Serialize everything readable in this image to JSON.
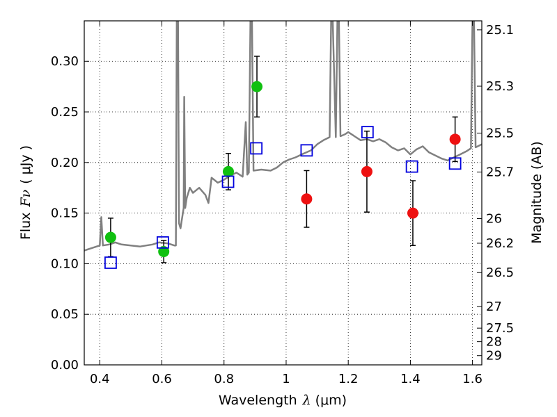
{
  "chart_data": {
    "type": "scatter",
    "xlabel": "Wavelength",
    "xlabel_symbol": "λ",
    "xlabel_unit": "(μm)",
    "ylabel": "Flux",
    "ylabel_symbol": "Fν",
    "ylabel_unit": "( μJy )",
    "y2label": "Magnitude (AB)",
    "xlim": [
      0.35,
      1.63
    ],
    "ylim": [
      0.0,
      0.34
    ],
    "x_ticks": [
      0.4,
      0.6,
      0.8,
      1.0,
      1.2,
      1.4,
      1.6
    ],
    "x_tick_labels": [
      "0.4",
      "0.6",
      "0.8",
      "1",
      "1.2",
      "1.4",
      "1.6"
    ],
    "y_ticks": [
      0.0,
      0.05,
      0.1,
      0.15,
      0.2,
      0.25,
      0.3
    ],
    "y_tick_labels": [
      "0.00",
      "0.05",
      "0.10",
      "0.15",
      "0.20",
      "0.25",
      "0.30"
    ],
    "mag_ticks": [
      "25.1",
      "25.3",
      "25.5",
      "25.7",
      "26",
      "26.2",
      "26.5",
      "27",
      "27.5",
      "28",
      "29"
    ],
    "grid": true,
    "colors": {
      "spectrum": "#808080",
      "green_points": "#10c010",
      "red_points": "#ee1111",
      "model_squares": "#0000dd",
      "errorbar": "#000000"
    },
    "series": [
      {
        "name": "observed-green",
        "marker": "circle",
        "points": [
          {
            "x": 0.435,
            "y": 0.126,
            "err": 0.019
          },
          {
            "x": 0.606,
            "y": 0.112,
            "err": 0.011
          },
          {
            "x": 0.814,
            "y": 0.191,
            "err": 0.018
          },
          {
            "x": 0.906,
            "y": 0.275,
            "err": 0.03
          }
        ]
      },
      {
        "name": "observed-red",
        "marker": "circle",
        "points": [
          {
            "x": 1.066,
            "y": 0.164,
            "err": 0.028
          },
          {
            "x": 1.26,
            "y": 0.191,
            "err": 0.04
          },
          {
            "x": 1.408,
            "y": 0.15,
            "err": 0.032
          },
          {
            "x": 1.544,
            "y": 0.223,
            "err": 0.022
          }
        ]
      },
      {
        "name": "model-bands",
        "marker": "square",
        "points": [
          {
            "x": 0.435,
            "y": 0.101
          },
          {
            "x": 0.603,
            "y": 0.121
          },
          {
            "x": 0.813,
            "y": 0.181
          },
          {
            "x": 0.904,
            "y": 0.214
          },
          {
            "x": 1.066,
            "y": 0.212
          },
          {
            "x": 1.262,
            "y": 0.23
          },
          {
            "x": 1.405,
            "y": 0.196
          },
          {
            "x": 1.544,
            "y": 0.199
          }
        ]
      }
    ],
    "spectrum": [
      [
        0.35,
        0.113
      ],
      [
        0.37,
        0.115
      ],
      [
        0.39,
        0.117
      ],
      [
        0.4,
        0.118
      ],
      [
        0.405,
        0.146
      ],
      [
        0.41,
        0.118
      ],
      [
        0.43,
        0.119
      ],
      [
        0.45,
        0.121
      ],
      [
        0.47,
        0.119
      ],
      [
        0.5,
        0.118
      ],
      [
        0.53,
        0.117
      ],
      [
        0.55,
        0.118
      ],
      [
        0.57,
        0.119
      ],
      [
        0.59,
        0.121
      ],
      [
        0.62,
        0.12
      ],
      [
        0.64,
        0.118
      ],
      [
        0.645,
        0.118
      ],
      [
        0.648,
        0.34
      ],
      [
        0.652,
        0.34
      ],
      [
        0.655,
        0.14
      ],
      [
        0.66,
        0.135
      ],
      [
        0.665,
        0.145
      ],
      [
        0.67,
        0.155
      ],
      [
        0.672,
        0.265
      ],
      [
        0.675,
        0.155
      ],
      [
        0.68,
        0.165
      ],
      [
        0.69,
        0.175
      ],
      [
        0.7,
        0.17
      ],
      [
        0.72,
        0.175
      ],
      [
        0.74,
        0.168
      ],
      [
        0.75,
        0.16
      ],
      [
        0.76,
        0.185
      ],
      [
        0.78,
        0.18
      ],
      [
        0.8,
        0.183
      ],
      [
        0.82,
        0.187
      ],
      [
        0.84,
        0.19
      ],
      [
        0.86,
        0.186
      ],
      [
        0.87,
        0.24
      ],
      [
        0.875,
        0.188
      ],
      [
        0.88,
        0.19
      ],
      [
        0.885,
        0.34
      ],
      [
        0.89,
        0.34
      ],
      [
        0.895,
        0.192
      ],
      [
        0.92,
        0.193
      ],
      [
        0.95,
        0.192
      ],
      [
        0.97,
        0.195
      ],
      [
        0.99,
        0.2
      ],
      [
        1.01,
        0.203
      ],
      [
        1.03,
        0.205
      ],
      [
        1.05,
        0.208
      ],
      [
        1.08,
        0.212
      ],
      [
        1.1,
        0.218
      ],
      [
        1.12,
        0.222
      ],
      [
        1.14,
        0.225
      ],
      [
        1.145,
        0.34
      ],
      [
        1.15,
        0.34
      ],
      [
        1.16,
        0.225
      ],
      [
        1.165,
        0.34
      ],
      [
        1.17,
        0.34
      ],
      [
        1.175,
        0.226
      ],
      [
        1.19,
        0.228
      ],
      [
        1.2,
        0.23
      ],
      [
        1.22,
        0.226
      ],
      [
        1.24,
        0.222
      ],
      [
        1.26,
        0.223
      ],
      [
        1.28,
        0.221
      ],
      [
        1.3,
        0.223
      ],
      [
        1.32,
        0.22
      ],
      [
        1.34,
        0.215
      ],
      [
        1.36,
        0.212
      ],
      [
        1.38,
        0.214
      ],
      [
        1.4,
        0.208
      ],
      [
        1.42,
        0.213
      ],
      [
        1.44,
        0.216
      ],
      [
        1.46,
        0.21
      ],
      [
        1.48,
        0.207
      ],
      [
        1.5,
        0.204
      ],
      [
        1.52,
        0.202
      ],
      [
        1.54,
        0.205
      ],
      [
        1.56,
        0.208
      ],
      [
        1.58,
        0.211
      ],
      [
        1.595,
        0.214
      ],
      [
        1.6,
        0.34
      ],
      [
        1.605,
        0.34
      ],
      [
        1.61,
        0.215
      ],
      [
        1.63,
        0.218
      ]
    ]
  }
}
